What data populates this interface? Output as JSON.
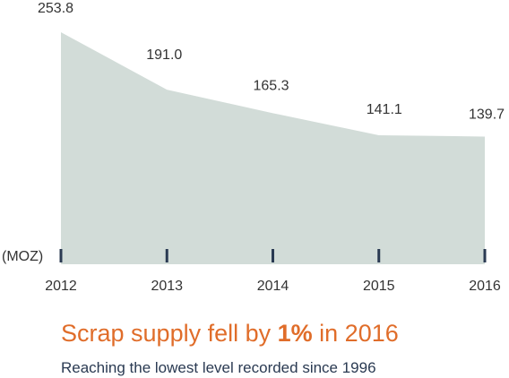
{
  "chart_data": {
    "type": "area",
    "x": [
      "2012",
      "2013",
      "2014",
      "2015",
      "2016"
    ],
    "values": [
      253.8,
      191.0,
      165.3,
      141.1,
      139.7
    ],
    "value_labels": [
      "253.8",
      "191.0",
      "165.3",
      "141.1",
      "139.7"
    ],
    "unit_label": "(MOZ)",
    "ylim": [
      0,
      260
    ],
    "grid": false,
    "colors": {
      "area_fill": "#d2dcd8",
      "axis_tick": "#2a3a52",
      "label_text": "#333333"
    }
  },
  "headline": {
    "before": "Scrap supply fell by ",
    "highlight": "1%",
    "after": " in 2016"
  },
  "subheadline": "Reaching the lowest level recorded since 1996",
  "colors": {
    "headline": "#e06d2a",
    "subheadline": "#2a3a52"
  }
}
